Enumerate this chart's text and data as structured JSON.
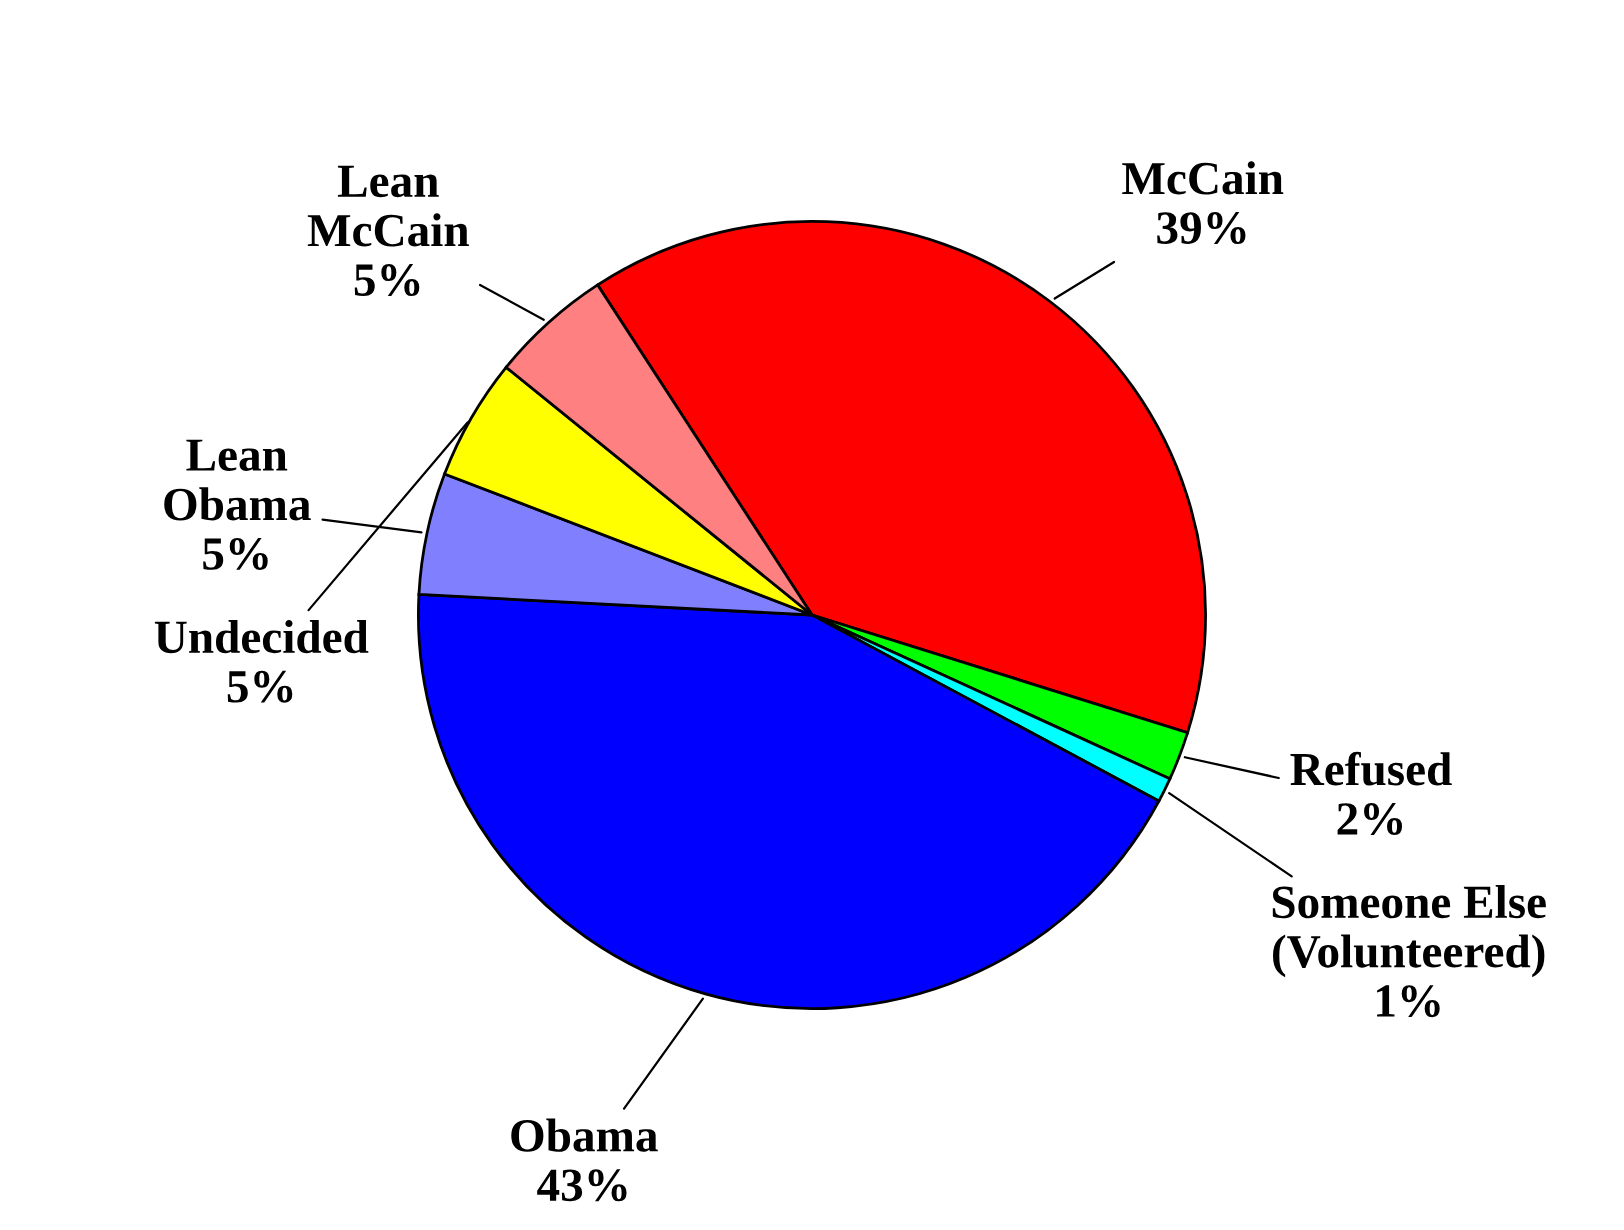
{
  "chart_data": {
    "type": "pie",
    "categories": [
      "McCain",
      "Refused",
      "Someone Else\n(Volunteered)",
      "Obama",
      "Lean\nObama",
      "Undecided",
      "Lean\nMcCain"
    ],
    "values": [
      39,
      2,
      1,
      43,
      5,
      5,
      5
    ],
    "value_labels": [
      "39%",
      "2%",
      "1%",
      "43%",
      "5%",
      "5%",
      "5%"
    ],
    "colors": [
      "#ff0000",
      "#00ff00",
      "#00ffff",
      "#0000ff",
      "#8080ff",
      "#ffff00",
      "#ff8080"
    ]
  }
}
